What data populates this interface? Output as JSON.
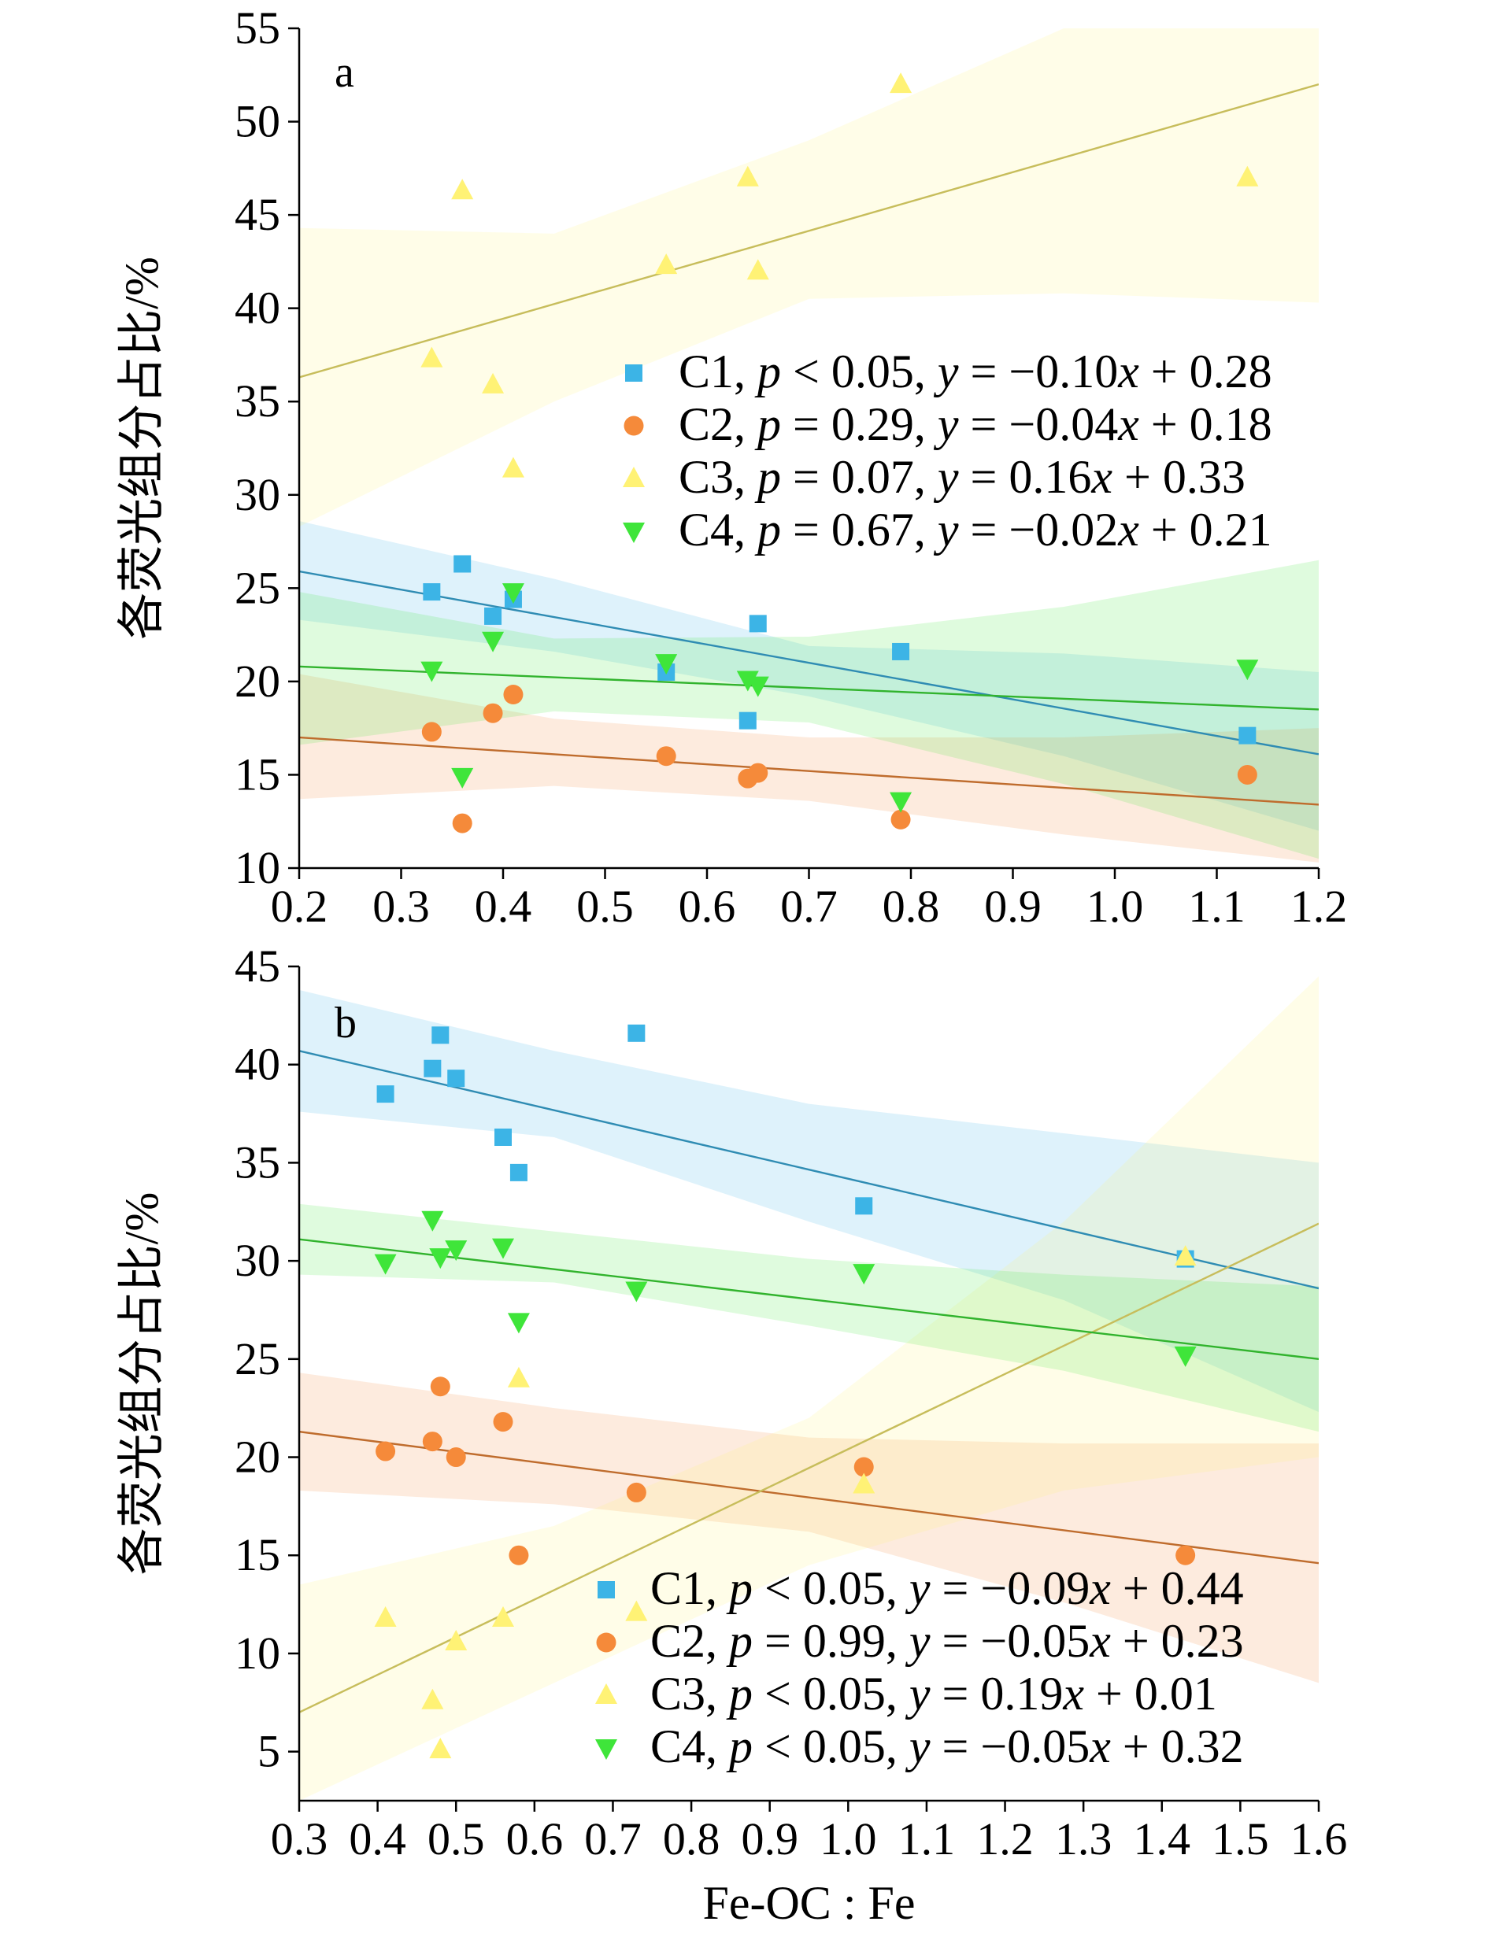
{
  "chart_data": [
    {
      "panel_label": "a",
      "type": "scatter",
      "ylabel": "各荧光组分占比/%",
      "xlabel": "",
      "xlim": [
        0.2,
        1.2
      ],
      "ylim": [
        10,
        55
      ],
      "xticks": [
        "0.2",
        "0.3",
        "0.4",
        "0.5",
        "0.6",
        "0.7",
        "0.8",
        "0.9",
        "1.0",
        "1.1",
        "1.2"
      ],
      "yticks": [
        "10",
        "15",
        "20",
        "25",
        "30",
        "35",
        "40",
        "45",
        "50",
        "55"
      ],
      "legend_position": "center-right",
      "series": [
        {
          "key": "C1",
          "marker": "square",
          "color": "#3cb4e6",
          "legend": {
            "comp": "C1",
            "p": "p",
            "p_rel": " < 0.05, ",
            "y": "y",
            "eq": " = −0.10",
            "x": "x",
            "const": " + 0.28"
          },
          "points": [
            [
              0.33,
              24.8
            ],
            [
              0.36,
              26.3
            ],
            [
              0.39,
              23.5
            ],
            [
              0.41,
              24.4
            ],
            [
              0.56,
              20.5
            ],
            [
              0.64,
              17.9
            ],
            [
              0.65,
              23.1
            ],
            [
              0.79,
              21.6
            ],
            [
              1.13,
              17.1
            ]
          ],
          "fit": [
            [
              0.2,
              25.9
            ],
            [
              1.2,
              16.1
            ]
          ],
          "band": {
            "x": [
              0.2,
              0.45,
              0.7,
              0.95,
              1.2
            ],
            "lo": [
              23.3,
              21.6,
              19.2,
              16.0,
              12.0
            ],
            "hi": [
              28.6,
              25.5,
              21.9,
              21.5,
              20.5
            ]
          }
        },
        {
          "key": "C2",
          "marker": "circle",
          "color": "#f58a3a",
          "legend": {
            "comp": "C2",
            "p": "p",
            "p_rel": " = 0.29, ",
            "y": "y",
            "eq": " = −0.04",
            "x": "x",
            "const": " + 0.18"
          },
          "points": [
            [
              0.33,
              17.3
            ],
            [
              0.36,
              12.4
            ],
            [
              0.39,
              18.3
            ],
            [
              0.41,
              19.3
            ],
            [
              0.56,
              16.0
            ],
            [
              0.64,
              14.8
            ],
            [
              0.65,
              15.1
            ],
            [
              0.79,
              12.6
            ],
            [
              1.13,
              15.0
            ]
          ],
          "fit": [
            [
              0.2,
              17.0
            ],
            [
              1.2,
              13.4
            ]
          ],
          "band": {
            "x": [
              0.2,
              0.45,
              0.7,
              0.95,
              1.2
            ],
            "lo": [
              13.7,
              14.4,
              13.6,
              11.8,
              10.3
            ],
            "hi": [
              20.4,
              18.0,
              17.0,
              17.0,
              17.5
            ]
          }
        },
        {
          "key": "C3",
          "marker": "triangle-up",
          "color": "#fff275",
          "legend": {
            "comp": "C3",
            "p": "p",
            "p_rel": " = 0.07, ",
            "y": "y",
            "eq": " = 0.16",
            "x": "x",
            "const": " + 0.33"
          },
          "points": [
            [
              0.33,
              37.3
            ],
            [
              0.36,
              46.3
            ],
            [
              0.39,
              35.9
            ],
            [
              0.41,
              31.4
            ],
            [
              0.56,
              42.3
            ],
            [
              0.64,
              47.0
            ],
            [
              0.65,
              42.0
            ],
            [
              0.79,
              52.0
            ],
            [
              1.13,
              47.0
            ]
          ],
          "fit": [
            [
              0.2,
              36.3
            ],
            [
              1.2,
              52.0
            ]
          ],
          "band": {
            "x": [
              0.2,
              0.45,
              0.7,
              0.95,
              1.2
            ],
            "lo": [
              28.3,
              35.0,
              40.5,
              40.8,
              40.3
            ],
            "hi": [
              44.3,
              44.0,
              49.0,
              55.0,
              55.0
            ]
          }
        },
        {
          "key": "C4",
          "marker": "triangle-down",
          "color": "#3fe53a",
          "legend": {
            "comp": "C4",
            "p": "p",
            "p_rel": " = 0.67, ",
            "y": "y",
            "eq": " = −0.02",
            "x": "x",
            "const": " + 0.21"
          },
          "points": [
            [
              0.33,
              20.6
            ],
            [
              0.36,
              14.9
            ],
            [
              0.39,
              22.2
            ],
            [
              0.41,
              24.8
            ],
            [
              0.56,
              21.0
            ],
            [
              0.64,
              20.1
            ],
            [
              0.65,
              19.8
            ],
            [
              0.79,
              13.6
            ],
            [
              1.13,
              20.7
            ]
          ],
          "fit": [
            [
              0.2,
              20.8
            ],
            [
              1.2,
              18.5
            ]
          ],
          "band": {
            "x": [
              0.2,
              0.45,
              0.7,
              0.95,
              1.2
            ],
            "lo": [
              16.6,
              18.4,
              17.8,
              14.5,
              10.5
            ],
            "hi": [
              24.8,
              22.3,
              22.4,
              24.0,
              26.5
            ]
          }
        }
      ]
    },
    {
      "panel_label": "b",
      "type": "scatter",
      "ylabel": "各荧光组分占比/%",
      "xlabel": "Fe-OC : Fe",
      "xlim": [
        0.3,
        1.6
      ],
      "ylim": [
        2.5,
        45
      ],
      "xticks": [
        "0.3",
        "0.4",
        "0.5",
        "0.6",
        "0.7",
        "0.8",
        "0.9",
        "1.0",
        "1.1",
        "1.2",
        "1.3",
        "1.4",
        "1.5",
        "1.6"
      ],
      "yticks": [
        "5",
        "10",
        "15",
        "20",
        "25",
        "30",
        "35",
        "40",
        "45"
      ],
      "legend_position": "lower-right",
      "series": [
        {
          "key": "C1",
          "marker": "square",
          "color": "#3cb4e6",
          "legend": {
            "comp": "C1",
            "p": "p",
            "p_rel": " < 0.05, ",
            "y": "y",
            "eq": " = −0.09",
            "x": "x",
            "const": " + 0.44"
          },
          "points": [
            [
              0.41,
              38.5
            ],
            [
              0.47,
              39.8
            ],
            [
              0.48,
              41.5
            ],
            [
              0.5,
              39.3
            ],
            [
              0.56,
              36.3
            ],
            [
              0.58,
              34.5
            ],
            [
              0.73,
              41.6
            ],
            [
              1.02,
              32.8
            ],
            [
              1.43,
              30.1
            ]
          ],
          "fit": [
            [
              0.3,
              40.7
            ],
            [
              1.6,
              28.6
            ]
          ],
          "band": {
            "x": [
              0.3,
              0.625,
              0.95,
              1.275,
              1.6
            ],
            "lo": [
              37.6,
              36.3,
              32.0,
              28.0,
              22.3
            ],
            "hi": [
              43.8,
              40.7,
              38.0,
              36.5,
              35.0
            ]
          }
        },
        {
          "key": "C2",
          "marker": "circle",
          "color": "#f58a3a",
          "legend": {
            "comp": "C2",
            "p": "p",
            "p_rel": " = 0.99, ",
            "y": "y",
            "eq": " = −0.05",
            "x": "x",
            "const": " + 0.23"
          },
          "points": [
            [
              0.41,
              20.3
            ],
            [
              0.47,
              20.8
            ],
            [
              0.48,
              23.6
            ],
            [
              0.5,
              20.0
            ],
            [
              0.56,
              21.8
            ],
            [
              0.58,
              15.0
            ],
            [
              0.73,
              18.2
            ],
            [
              1.02,
              19.5
            ],
            [
              1.43,
              15.0
            ]
          ],
          "fit": [
            [
              0.3,
              21.3
            ],
            [
              1.6,
              14.6
            ]
          ],
          "band": {
            "x": [
              0.3,
              0.625,
              0.95,
              1.275,
              1.6
            ],
            "lo": [
              18.3,
              17.6,
              16.2,
              12.6,
              8.5
            ],
            "hi": [
              24.3,
              22.5,
              21.0,
              20.7,
              20.7
            ]
          }
        },
        {
          "key": "C3",
          "marker": "triangle-up",
          "color": "#fff275",
          "legend": {
            "comp": "C3",
            "p": "p",
            "p_rel": " < 0.05, ",
            "y": "y",
            "eq": " = 0.19",
            "x": "x",
            "const": " + 0.01"
          },
          "points": [
            [
              0.41,
              11.8
            ],
            [
              0.47,
              7.6
            ],
            [
              0.48,
              5.1
            ],
            [
              0.5,
              10.6
            ],
            [
              0.56,
              11.8
            ],
            [
              0.58,
              24.0
            ],
            [
              0.73,
              12.1
            ],
            [
              1.02,
              18.6
            ],
            [
              1.43,
              30.2
            ]
          ],
          "fit": [
            [
              0.3,
              7.0
            ],
            [
              1.6,
              31.9
            ]
          ],
          "band": {
            "x": [
              0.3,
              0.625,
              0.95,
              1.275,
              1.6
            ],
            "lo": [
              2.5,
              8.5,
              14.5,
              18.3,
              20.0
            ],
            "hi": [
              13.5,
              16.5,
              22.0,
              32.0,
              44.5
            ]
          }
        },
        {
          "key": "C4",
          "marker": "triangle-down",
          "color": "#3fe53a",
          "legend": {
            "comp": "C4",
            "p": "p",
            "p_rel": " < 0.05, ",
            "y": "y",
            "eq": " = −0.05",
            "x": "x",
            "const": " + 0.32"
          },
          "points": [
            [
              0.41,
              29.9
            ],
            [
              0.47,
              32.1
            ],
            [
              0.48,
              30.2
            ],
            [
              0.5,
              30.6
            ],
            [
              0.56,
              30.7
            ],
            [
              0.58,
              26.9
            ],
            [
              0.73,
              28.5
            ],
            [
              1.02,
              29.4
            ],
            [
              1.43,
              25.2
            ]
          ],
          "fit": [
            [
              0.3,
              31.1
            ],
            [
              1.6,
              25.0
            ]
          ],
          "band": {
            "x": [
              0.3,
              0.625,
              0.95,
              1.275,
              1.6
            ],
            "lo": [
              29.3,
              28.9,
              26.7,
              24.4,
              21.3
            ],
            "hi": [
              32.9,
              31.5,
              30.1,
              29.3,
              28.7
            ]
          }
        }
      ]
    }
  ]
}
